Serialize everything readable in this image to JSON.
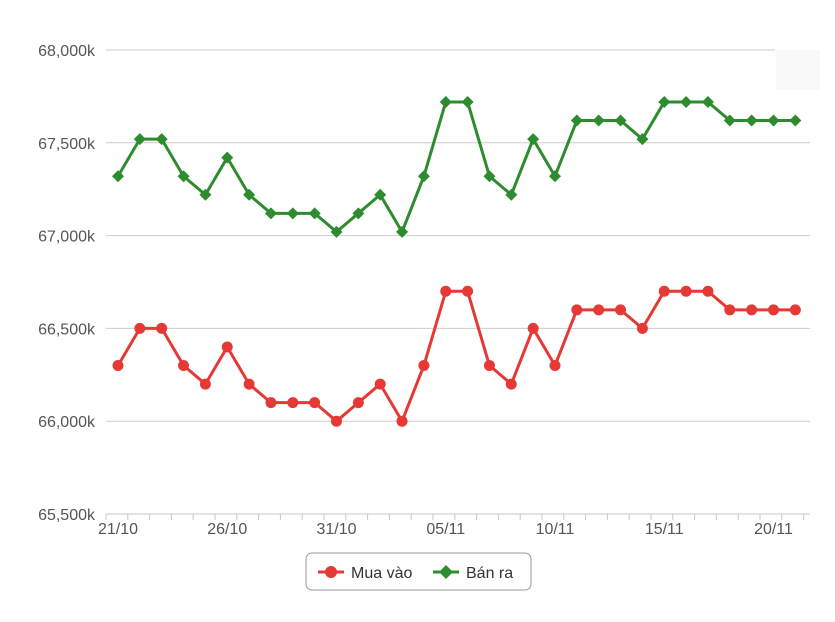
{
  "chart_data": {
    "type": "line",
    "title": "",
    "xlabel": "",
    "ylabel": "",
    "ylim": [
      65500,
      68000
    ],
    "yticks": [
      65500,
      66000,
      66500,
      67000,
      67500,
      68000
    ],
    "ytick_labels": [
      "65,500k",
      "66,000k",
      "66,500k",
      "67,000k",
      "67,500k",
      "68,000k"
    ],
    "grid": true,
    "legend_position": "bottom-center",
    "x_tick_labels": [
      {
        "index": 0,
        "label": "21/10"
      },
      {
        "index": 5,
        "label": "26/10"
      },
      {
        "index": 10,
        "label": "31/10"
      },
      {
        "index": 15,
        "label": "05/11"
      },
      {
        "index": 20,
        "label": "10/11"
      },
      {
        "index": 25,
        "label": "15/11"
      },
      {
        "index": 30,
        "label": "20/11"
      }
    ],
    "series": [
      {
        "name": "Mua vào",
        "color": "#e53935",
        "marker": "circle",
        "values": [
          66300,
          66500,
          66500,
          66300,
          66200,
          66400,
          66200,
          66100,
          66100,
          66100,
          66000,
          66100,
          66200,
          66000,
          66300,
          66700,
          66700,
          66300,
          66200,
          66500,
          66300,
          66600,
          66600,
          66600,
          66500,
          66700,
          66700,
          66700,
          66600,
          66600,
          66600,
          66600
        ]
      },
      {
        "name": "Bán ra",
        "color": "#2e8b2e",
        "marker": "diamond",
        "values": [
          67320,
          67520,
          67520,
          67320,
          67220,
          67420,
          67220,
          67120,
          67120,
          67120,
          67020,
          67120,
          67220,
          67020,
          67320,
          67720,
          67720,
          67320,
          67220,
          67520,
          67320,
          67620,
          67620,
          67620,
          67520,
          67720,
          67720,
          67720,
          67620,
          67620,
          67620,
          67620
        ]
      }
    ]
  }
}
